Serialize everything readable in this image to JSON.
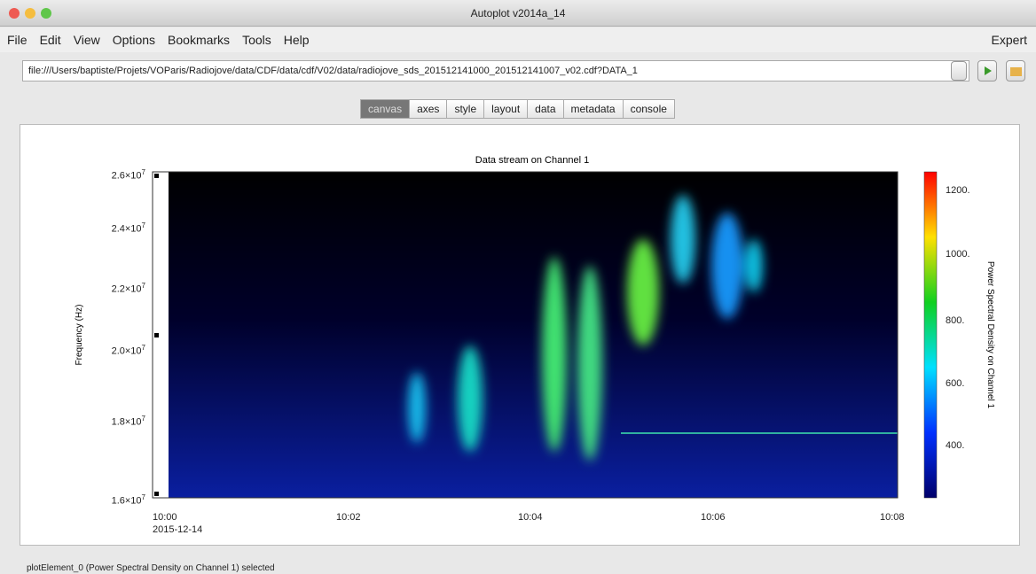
{
  "window": {
    "title": "Autoplot v2014a_14"
  },
  "menu": [
    "File",
    "Edit",
    "View",
    "Options",
    "Bookmarks",
    "Tools",
    "Help"
  ],
  "mode": "Expert",
  "address": "file:///Users/baptiste/Projets/VOParis/Radiojove/data/CDF/data/cdf/V02/data/radiojove_sds_201512141000_201512141007_v02.cdf?DATA_1",
  "tabs": [
    "canvas",
    "axes",
    "style",
    "layout",
    "data",
    "metadata",
    "console"
  ],
  "plot": {
    "title": "Data stream on Channel 1",
    "y_label": "Frequency (Hz)",
    "y_ticks": [
      {
        "base": "2.6×10",
        "exp": "7"
      },
      {
        "base": "2.4×10",
        "exp": "7"
      },
      {
        "base": "2.2×10",
        "exp": "7"
      },
      {
        "base": "2.0×10",
        "exp": "7"
      },
      {
        "base": "1.8×10",
        "exp": "7"
      },
      {
        "base": "1.6×10",
        "exp": "7"
      }
    ],
    "x_ticks": [
      "10:00",
      "10:02",
      "10:04",
      "10:06",
      "10:08"
    ],
    "x_date": "2015-12-14",
    "colorbar_label": "Power Spectral Density on Channel 1",
    "colorbar_ticks": [
      "1200.",
      "1000.",
      "800.",
      "600.",
      "400."
    ]
  },
  "status": "plotElement_0 (Power Spectral Density on Channel 1) selected"
}
